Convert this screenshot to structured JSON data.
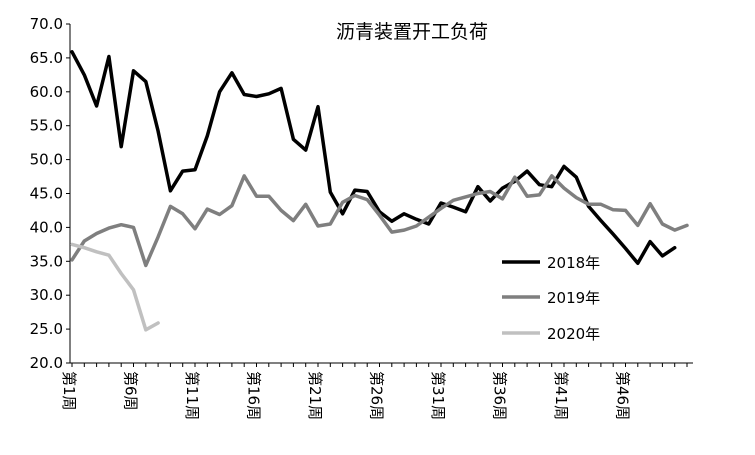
{
  "chart_data": {
    "type": "line",
    "title": "沥青装置开工负荷",
    "xlabel": "",
    "ylabel": "",
    "ylim": [
      20,
      70
    ],
    "y_ticks": [
      "20.0",
      "25.0",
      "30.0",
      "35.0",
      "40.0",
      "45.0",
      "50.0",
      "55.0",
      "60.0",
      "65.0",
      "70.0"
    ],
    "x_ticks": [
      {
        "week": 1,
        "label": "第1周"
      },
      {
        "week": 6,
        "label": "第6周"
      },
      {
        "week": 11,
        "label": "第11周"
      },
      {
        "week": 16,
        "label": "第16周"
      },
      {
        "week": 21,
        "label": "第21周"
      },
      {
        "week": 26,
        "label": "第26周"
      },
      {
        "week": 31,
        "label": "第31周"
      },
      {
        "week": 36,
        "label": "第36周"
      },
      {
        "week": 41,
        "label": "第41周"
      },
      {
        "week": 46,
        "label": "第46周"
      }
    ],
    "x_range": [
      1,
      51
    ],
    "grid": false,
    "legend_position": "right",
    "series": [
      {
        "name": "2018年",
        "color": "#000000",
        "values": [
          65.9,
          62.5,
          57.9,
          65.2,
          51.9,
          63.1,
          61.5,
          54.2,
          45.4,
          48.3,
          48.5,
          53.5,
          60.0,
          62.8,
          59.6,
          59.3,
          59.7,
          60.5,
          53.0,
          51.4,
          57.8,
          45.2,
          42.0,
          45.5,
          45.3,
          42.3,
          40.9,
          42.0,
          41.2,
          40.5,
          43.6,
          43.0,
          42.3,
          46.0,
          43.9,
          45.8,
          46.8,
          48.3,
          46.3,
          46.0,
          49.0,
          47.4,
          43.1,
          41.0,
          39.0,
          36.9,
          34.7,
          37.9,
          35.8,
          37.0
        ]
      },
      {
        "name": "2019年",
        "color": "#7f7f7f",
        "values": [
          35.2,
          38.0,
          39.1,
          39.9,
          40.4,
          40.0,
          34.4,
          38.6,
          43.1,
          42.0,
          39.8,
          42.7,
          41.9,
          43.2,
          47.6,
          44.6,
          44.6,
          42.5,
          41.0,
          43.4,
          40.2,
          40.5,
          43.7,
          44.7,
          44.1,
          41.8,
          39.3,
          39.6,
          40.2,
          41.5,
          42.8,
          44.0,
          44.5,
          45.0,
          45.3,
          44.2,
          47.4,
          44.6,
          44.8,
          47.6,
          45.8,
          44.4,
          43.4,
          43.4,
          42.6,
          42.5,
          40.3,
          43.5,
          40.5,
          39.6,
          40.3
        ]
      },
      {
        "name": "2020年",
        "color": "#c0c0c0",
        "values": [
          37.5,
          37.0,
          36.4,
          35.9,
          33.2,
          30.8,
          24.9,
          25.9
        ]
      }
    ]
  }
}
